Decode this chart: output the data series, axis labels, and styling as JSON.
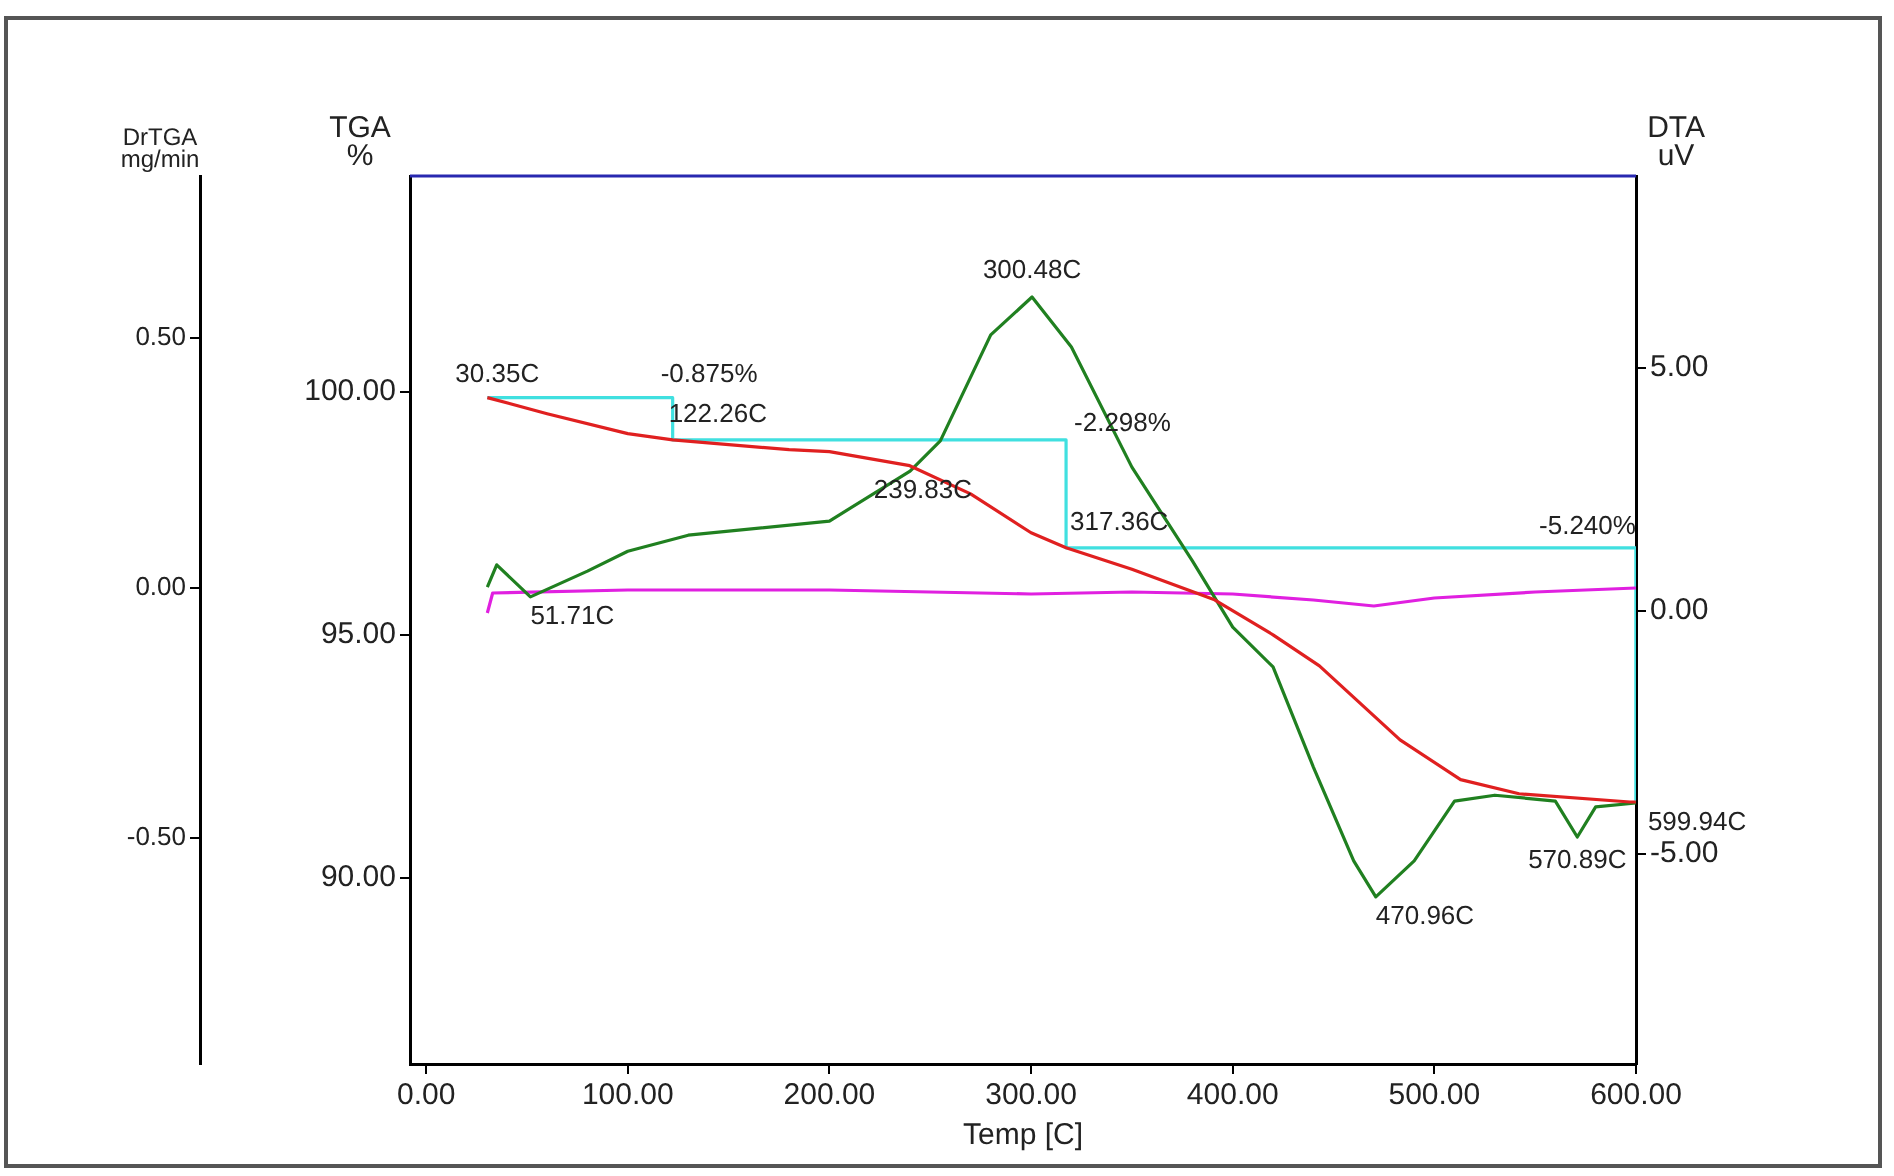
{
  "chart_data": {
    "type": "line",
    "xlabel": "Temp [C]",
    "ylabel": "TGA %",
    "y2label": "DTA uV",
    "y3label": "DrTGA mg/min",
    "marker": "none",
    "legend": false,
    "xlim": [
      -8,
      600
    ],
    "xticks": [
      {
        "value": 0,
        "label": "0.00"
      },
      {
        "value": 100,
        "label": "100.00"
      },
      {
        "value": 200,
        "label": "200.00"
      },
      {
        "value": 300,
        "label": "300.00"
      },
      {
        "value": 400,
        "label": "400.00"
      },
      {
        "value": 500,
        "label": "500.00"
      },
      {
        "value": 600,
        "label": "600.00"
      }
    ],
    "ylim": [
      86.17,
      104.44
    ],
    "yticks": [
      {
        "value": 90,
        "label": "90.00"
      },
      {
        "value": 95,
        "label": "95.00"
      },
      {
        "value": 100,
        "label": "100.00"
      }
    ],
    "y2lim": [
      -9.32,
      8.95
    ],
    "y2ticks": [
      {
        "value": -5,
        "label": "-5.00"
      },
      {
        "value": 0,
        "label": "0.00"
      },
      {
        "value": 5,
        "label": "5.00"
      }
    ],
    "y3lim": [
      -0.952,
      0.824
    ],
    "y3ticks": [
      {
        "value": -0.5,
        "label": "-0.50"
      },
      {
        "value": 0,
        "label": "0.00"
      },
      {
        "value": 0.5,
        "label": "0.50"
      }
    ],
    "series": [
      {
        "color": "#e02020",
        "x": [
          30.35,
          60,
          100,
          122.26,
          180,
          200,
          239.83,
          270,
          300,
          317.36,
          350,
          391,
          420,
          443,
          483,
          513,
          542,
          597,
          599.94
        ],
        "values": [
          99.88,
          99.55,
          99.14,
          99.01,
          98.81,
          98.77,
          98.48,
          97.9,
          97.1,
          96.79,
          96.35,
          95.72,
          95.0,
          94.36,
          92.84,
          92.02,
          91.73,
          91.56,
          91.56
        ]
      },
      {
        "color": "#208020",
        "axis": "y2",
        "x": [
          30.35,
          35,
          51.71,
          80,
          100,
          130,
          200,
          240,
          255,
          280,
          300.48,
          320,
          350,
          380,
          400,
          420,
          440,
          460,
          470.96,
          490,
          510,
          530,
          560,
          570.89,
          580,
          599.94
        ],
        "values": [
          0.49,
          0.95,
          0.29,
          0.82,
          1.23,
          1.56,
          1.85,
          2.88,
          3.5,
          5.68,
          6.46,
          5.43,
          2.96,
          1.03,
          -0.33,
          -1.15,
          -3.21,
          -5.14,
          -5.88,
          -5.14,
          -3.91,
          -3.79,
          -3.91,
          -4.65,
          -4.03,
          -3.95
        ]
      },
      {
        "color": "#e020e0",
        "axis": "y3",
        "x": [
          30.35,
          33,
          100,
          200,
          300,
          350,
          400,
          440,
          470,
          500,
          550,
          599.94
        ],
        "values": [
          -0.05,
          -0.01,
          -0.004,
          -0.004,
          -0.012,
          -0.008,
          -0.012,
          -0.024,
          -0.036,
          -0.02,
          -0.008,
          0.0
        ]
      },
      {
        "color": "#40e0e0",
        "x": [
          30.35,
          122.26,
          122.26,
          317.36,
          317.36,
          599.94,
          599.94
        ],
        "values": [
          99.88,
          99.88,
          99.01,
          99.01,
          96.79,
          96.79,
          91.6
        ]
      }
    ],
    "annotations": [
      {
        "text": "30.35C",
        "x": 30.35,
        "y": 99.88
      },
      {
        "text": "-0.875%",
        "x": 122.26,
        "y": 99.88
      },
      {
        "text": "122.26C",
        "x": 122.26,
        "y": 99.01
      },
      {
        "text": "-2.298%",
        "x": 317.36,
        "y": 99.01
      },
      {
        "text": "239.83C",
        "x": 239.83,
        "y": 98.48
      },
      {
        "text": "317.36C",
        "x": 317.36,
        "y": 96.79
      },
      {
        "text": "-5.240%",
        "x": 599.94,
        "y": 96.79
      },
      {
        "text": "599.94C",
        "x": 599.94,
        "y": 91.56
      },
      {
        "text": "300.48C",
        "x": 300.48,
        "y": 101.98
      },
      {
        "text": "51.71C",
        "x": 51.71,
        "y": 95.8
      },
      {
        "text": "470.96C",
        "x": 470.96,
        "y": 89.63
      },
      {
        "text": "570.89C",
        "x": 570.89,
        "y": 90.86
      }
    ]
  }
}
